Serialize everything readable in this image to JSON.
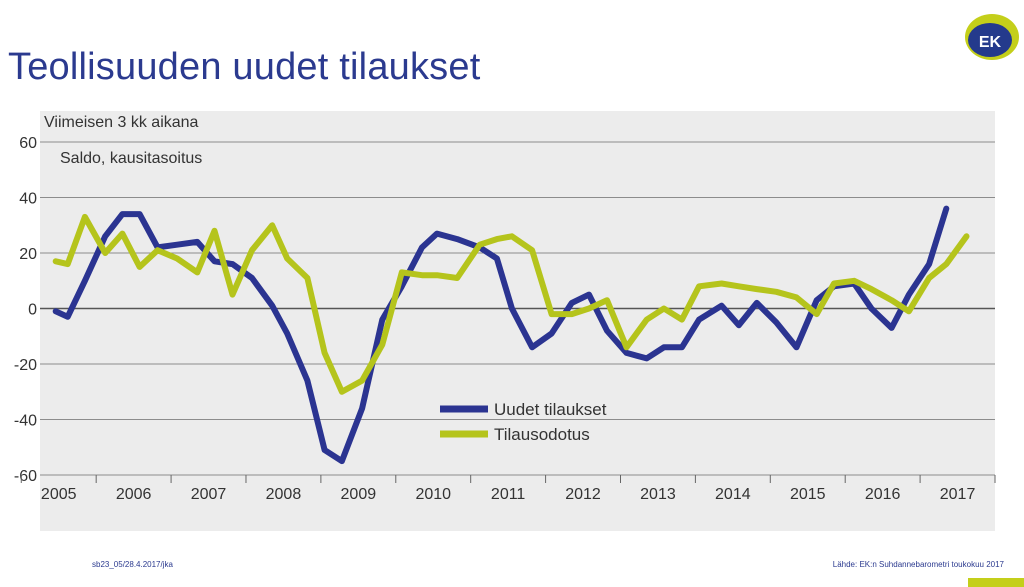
{
  "page": {
    "title": "Teollisuuden uudet tilaukset",
    "logo_text": "EK",
    "footer_left": "sb23_05/28.4.2017/jka",
    "footer_right": "Lähde: EK:n Suhdannebarometri toukokuu 2017"
  },
  "colors": {
    "title": "#2b3a8f",
    "series_blue": "#2b3491",
    "series_green": "#b5c41c",
    "plot_bg": "#ececec",
    "logo_blue": "#243a8c",
    "logo_green": "#c4cf1a"
  },
  "chart_data": {
    "type": "line",
    "subtitle_1": "Viimeisen 3 kk aikana",
    "subtitle_2": "Saldo, kausitasoitus",
    "ylim": [
      -60,
      60
    ],
    "yticks": [
      60,
      40,
      20,
      0,
      -20,
      -40,
      -60
    ],
    "xlim": [
      2004.75,
      2017.5
    ],
    "xticks": [
      "2005",
      "2006",
      "2007",
      "2008",
      "2009",
      "2010",
      "2011",
      "2012",
      "2013",
      "2014",
      "2015",
      "2016",
      "2017"
    ],
    "grid": true,
    "legend_position": "bottom-center",
    "series": [
      {
        "name": "Uudet tilaukset",
        "color": "#2b3491",
        "points": [
          [
            2004.96,
            -1
          ],
          [
            2005.12,
            -3
          ],
          [
            2005.35,
            10
          ],
          [
            2005.62,
            26
          ],
          [
            2005.85,
            34
          ],
          [
            2006.08,
            34
          ],
          [
            2006.32,
            22
          ],
          [
            2006.58,
            23
          ],
          [
            2006.85,
            24
          ],
          [
            2007.08,
            17
          ],
          [
            2007.32,
            16
          ],
          [
            2007.58,
            11
          ],
          [
            2007.85,
            1
          ],
          [
            2008.05,
            -9
          ],
          [
            2008.32,
            -26
          ],
          [
            2008.55,
            -51
          ],
          [
            2008.78,
            -55
          ],
          [
            2009.05,
            -36
          ],
          [
            2009.32,
            -4
          ],
          [
            2009.58,
            8
          ],
          [
            2009.85,
            22
          ],
          [
            2010.05,
            27
          ],
          [
            2010.32,
            25
          ],
          [
            2010.62,
            22
          ],
          [
            2010.85,
            18
          ],
          [
            2011.05,
            0
          ],
          [
            2011.32,
            -14
          ],
          [
            2011.58,
            -9
          ],
          [
            2011.85,
            2
          ],
          [
            2012.08,
            5
          ],
          [
            2012.32,
            -8
          ],
          [
            2012.58,
            -16
          ],
          [
            2012.85,
            -18
          ],
          [
            2013.08,
            -14
          ],
          [
            2013.32,
            -14
          ],
          [
            2013.55,
            -4
          ],
          [
            2013.85,
            1
          ],
          [
            2014.08,
            -6
          ],
          [
            2014.32,
            2
          ],
          [
            2014.58,
            -5
          ],
          [
            2014.85,
            -14
          ],
          [
            2015.12,
            3
          ],
          [
            2015.35,
            8
          ],
          [
            2015.62,
            9
          ],
          [
            2015.85,
            0
          ],
          [
            2016.12,
            -7
          ],
          [
            2016.35,
            5
          ],
          [
            2016.62,
            16
          ],
          [
            2016.85,
            36
          ]
        ]
      },
      {
        "name": "Tilausodotus",
        "color": "#b5c41c",
        "points": [
          [
            2004.96,
            17
          ],
          [
            2005.12,
            16
          ],
          [
            2005.35,
            33
          ],
          [
            2005.62,
            20
          ],
          [
            2005.85,
            27
          ],
          [
            2006.08,
            15
          ],
          [
            2006.32,
            21
          ],
          [
            2006.58,
            18
          ],
          [
            2006.85,
            13
          ],
          [
            2007.08,
            28
          ],
          [
            2007.32,
            5
          ],
          [
            2007.58,
            21
          ],
          [
            2007.85,
            30
          ],
          [
            2008.05,
            18
          ],
          [
            2008.32,
            11
          ],
          [
            2008.55,
            -16
          ],
          [
            2008.78,
            -30
          ],
          [
            2009.05,
            -26
          ],
          [
            2009.32,
            -13
          ],
          [
            2009.58,
            13
          ],
          [
            2009.85,
            12
          ],
          [
            2010.05,
            12
          ],
          [
            2010.32,
            11
          ],
          [
            2010.62,
            23
          ],
          [
            2010.85,
            25
          ],
          [
            2011.05,
            26
          ],
          [
            2011.32,
            21
          ],
          [
            2011.58,
            -2
          ],
          [
            2011.85,
            -2
          ],
          [
            2012.08,
            0
          ],
          [
            2012.32,
            3
          ],
          [
            2012.58,
            -14
          ],
          [
            2012.85,
            -4
          ],
          [
            2013.08,
            0
          ],
          [
            2013.32,
            -4
          ],
          [
            2013.55,
            8
          ],
          [
            2013.85,
            9
          ],
          [
            2014.08,
            8
          ],
          [
            2014.32,
            7
          ],
          [
            2014.58,
            6
          ],
          [
            2014.85,
            4
          ],
          [
            2015.12,
            -2
          ],
          [
            2015.35,
            9
          ],
          [
            2015.62,
            10
          ],
          [
            2015.85,
            7
          ],
          [
            2016.12,
            3
          ],
          [
            2016.35,
            -1
          ],
          [
            2016.62,
            11
          ],
          [
            2016.85,
            16
          ],
          [
            2017.12,
            26
          ]
        ]
      }
    ]
  }
}
